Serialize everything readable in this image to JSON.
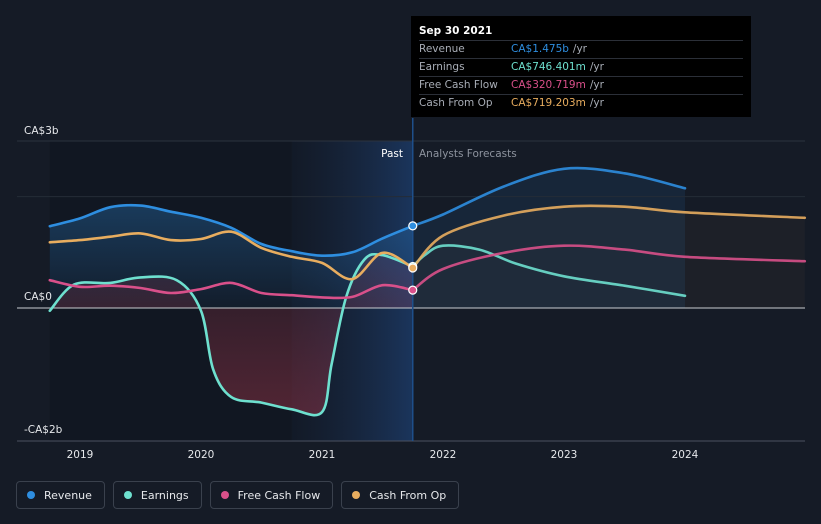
{
  "tooltip": {
    "date": "Sep 30 2021",
    "rows": [
      {
        "label": "Revenue",
        "value": "CA$1.475b",
        "unit": "/yr",
        "color": "#2e8ee0"
      },
      {
        "label": "Earnings",
        "value": "CA$746.401m",
        "unit": "/yr",
        "color": "#6ee0cf"
      },
      {
        "label": "Free Cash Flow",
        "value": "CA$320.719m",
        "unit": "/yr",
        "color": "#d9508a"
      },
      {
        "label": "Cash From Op",
        "value": "CA$719.203m",
        "unit": "/yr",
        "color": "#e8ad5f"
      }
    ]
  },
  "legend": [
    {
      "label": "Revenue",
      "color": "#2e8ee0"
    },
    {
      "label": "Earnings",
      "color": "#6ee0cf"
    },
    {
      "label": "Free Cash Flow",
      "color": "#d9508a"
    },
    {
      "label": "Cash From Op",
      "color": "#e8ad5f"
    }
  ],
  "chart_data": {
    "type": "line",
    "title": "",
    "y_labels": {
      "top": "CA$3b",
      "zero": "CA$0",
      "bottom": "-CA$2b"
    },
    "ylim": [
      -2,
      3
    ],
    "xlim": [
      2018.75,
      2024.99
    ],
    "x_ticks": [
      2019,
      2020,
      2021,
      2022,
      2023,
      2024
    ],
    "x_tick_labels": [
      "2019",
      "2020",
      "2021",
      "2022",
      "2023",
      "2024"
    ],
    "regions": {
      "past_label": "Past",
      "forecast_label": "Analysts Forecasts",
      "divider_x": 2021.75,
      "highlight_start": 2020.75
    },
    "series": [
      {
        "name": "Revenue",
        "color": "#2e8ee0",
        "points": [
          [
            2018.75,
            1.47
          ],
          [
            2019.0,
            1.61
          ],
          [
            2019.25,
            1.81
          ],
          [
            2019.5,
            1.84
          ],
          [
            2019.75,
            1.73
          ],
          [
            2020.0,
            1.62
          ],
          [
            2020.25,
            1.44
          ],
          [
            2020.5,
            1.15
          ],
          [
            2020.75,
            1.02
          ],
          [
            2021.0,
            0.94
          ],
          [
            2021.25,
            1.0
          ],
          [
            2021.5,
            1.25
          ],
          [
            2021.75,
            1.475
          ]
        ],
        "forecast": [
          [
            2021.75,
            1.475
          ],
          [
            2022.0,
            1.68
          ],
          [
            2022.5,
            2.18
          ],
          [
            2023.0,
            2.5
          ],
          [
            2023.5,
            2.42
          ],
          [
            2024.0,
            2.15
          ]
        ]
      },
      {
        "name": "Earnings",
        "color": "#6ee0cf",
        "points": [
          [
            2018.75,
            -0.05
          ],
          [
            2018.95,
            0.42
          ],
          [
            2019.25,
            0.45
          ],
          [
            2019.5,
            0.55
          ],
          [
            2019.8,
            0.5
          ],
          [
            2020.0,
            -0.05
          ],
          [
            2020.1,
            -1.1
          ],
          [
            2020.25,
            -1.6
          ],
          [
            2020.5,
            -1.7
          ],
          [
            2020.75,
            -1.82
          ],
          [
            2021.0,
            -1.87
          ],
          [
            2021.08,
            -1.0
          ],
          [
            2021.2,
            0.2
          ],
          [
            2021.35,
            0.87
          ],
          [
            2021.5,
            0.95
          ],
          [
            2021.75,
            0.746
          ]
        ],
        "forecast": [
          [
            2021.75,
            0.746
          ],
          [
            2021.85,
            0.95
          ],
          [
            2022.0,
            1.12
          ],
          [
            2022.3,
            1.05
          ],
          [
            2022.6,
            0.8
          ],
          [
            2023.0,
            0.57
          ],
          [
            2023.5,
            0.4
          ],
          [
            2024.0,
            0.22
          ]
        ]
      },
      {
        "name": "Free Cash Flow",
        "color": "#d9508a",
        "points": [
          [
            2018.75,
            0.5
          ],
          [
            2019.0,
            0.38
          ],
          [
            2019.25,
            0.4
          ],
          [
            2019.5,
            0.36
          ],
          [
            2019.75,
            0.27
          ],
          [
            2020.0,
            0.34
          ],
          [
            2020.25,
            0.45
          ],
          [
            2020.5,
            0.27
          ],
          [
            2020.75,
            0.23
          ],
          [
            2021.0,
            0.19
          ],
          [
            2021.25,
            0.2
          ],
          [
            2021.5,
            0.41
          ],
          [
            2021.75,
            0.3207
          ]
        ],
        "forecast": [
          [
            2021.75,
            0.3207
          ],
          [
            2022.0,
            0.7
          ],
          [
            2022.5,
            0.99
          ],
          [
            2023.0,
            1.12
          ],
          [
            2023.5,
            1.05
          ],
          [
            2024.0,
            0.92
          ],
          [
            2024.99,
            0.84
          ]
        ]
      },
      {
        "name": "Cash From Op",
        "color": "#e8ad5f",
        "points": [
          [
            2018.75,
            1.18
          ],
          [
            2019.0,
            1.22
          ],
          [
            2019.25,
            1.28
          ],
          [
            2019.5,
            1.34
          ],
          [
            2019.75,
            1.22
          ],
          [
            2020.0,
            1.24
          ],
          [
            2020.25,
            1.37
          ],
          [
            2020.5,
            1.08
          ],
          [
            2020.75,
            0.92
          ],
          [
            2021.0,
            0.81
          ],
          [
            2021.25,
            0.52
          ],
          [
            2021.5,
            0.99
          ],
          [
            2021.75,
            0.7192
          ]
        ],
        "forecast": [
          [
            2021.75,
            0.7192
          ],
          [
            2022.0,
            1.3
          ],
          [
            2022.5,
            1.66
          ],
          [
            2023.0,
            1.82
          ],
          [
            2023.5,
            1.82
          ],
          [
            2024.0,
            1.72
          ],
          [
            2024.99,
            1.62
          ]
        ]
      }
    ]
  }
}
